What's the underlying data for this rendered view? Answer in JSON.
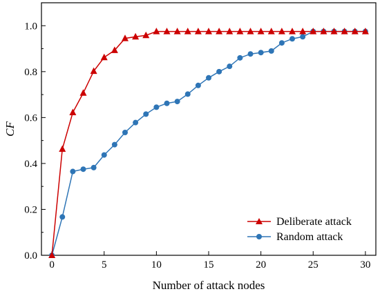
{
  "chart_data": {
    "type": "line",
    "xlabel": "Number of attack nodes",
    "ylabel": "CF",
    "xlim": [
      -1,
      31
    ],
    "ylim": [
      0,
      1.1
    ],
    "xticks": [
      0,
      5,
      10,
      15,
      20,
      25,
      30
    ],
    "yticks": [
      0.0,
      0.2,
      0.4,
      0.6,
      0.8,
      1.0
    ],
    "ytick_labels": [
      "0.0",
      "0.2",
      "0.4",
      "0.6",
      "0.8",
      "1.0"
    ],
    "x": [
      0,
      1,
      2,
      3,
      4,
      5,
      6,
      7,
      8,
      9,
      10,
      11,
      12,
      13,
      14,
      15,
      16,
      17,
      18,
      19,
      20,
      21,
      22,
      23,
      24,
      25,
      26,
      27,
      28,
      29,
      30
    ],
    "legend_position": "bottom-right",
    "series": [
      {
        "name": "Deliberate attack",
        "color": "#cc0000",
        "marker": "triangle",
        "values": [
          0,
          0.463,
          0.622,
          0.707,
          0.802,
          0.862,
          0.893,
          0.945,
          0.952,
          0.958,
          0.975,
          0.975,
          0.975,
          0.975,
          0.975,
          0.975,
          0.975,
          0.975,
          0.975,
          0.975,
          0.975,
          0.975,
          0.975,
          0.975,
          0.975,
          0.975,
          0.975,
          0.975,
          0.975,
          0.975,
          0.975
        ]
      },
      {
        "name": "Random attack",
        "color": "#2e75b6",
        "marker": "circle",
        "values": [
          0,
          0.167,
          0.365,
          0.375,
          0.382,
          0.437,
          0.482,
          0.535,
          0.578,
          0.615,
          0.645,
          0.662,
          0.67,
          0.702,
          0.74,
          0.773,
          0.8,
          0.823,
          0.86,
          0.877,
          0.883,
          0.89,
          0.925,
          0.943,
          0.952,
          0.975,
          0.975,
          0.975,
          0.975,
          0.975,
          0.975
        ]
      }
    ]
  }
}
